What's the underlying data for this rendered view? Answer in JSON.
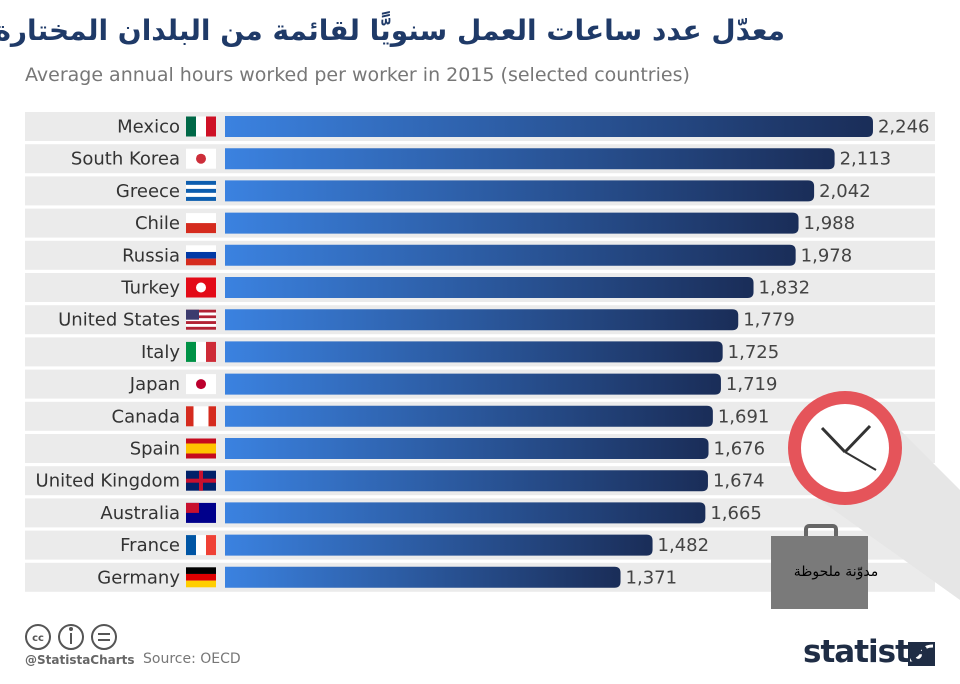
{
  "chart_data": {
    "type": "barh",
    "title": "معدّل عدد ساعات العمل سنويًّا لقائمة من البلدان المختارة",
    "subtitle": "Average annual hours worked per worker in 2015 (selected countries)",
    "categories": [
      "Mexico",
      "South Korea",
      "Greece",
      "Chile",
      "Russia",
      "Turkey",
      "United States",
      "Italy",
      "Japan",
      "Canada",
      "Spain",
      "United Kingdom",
      "Australia",
      "France",
      "Germany"
    ],
    "values": [
      2246,
      2113,
      2042,
      1988,
      1978,
      1832,
      1779,
      1725,
      1719,
      1691,
      1676,
      1674,
      1665,
      1482,
      1371
    ],
    "value_labels": [
      "2,246",
      "2,113",
      "2,042",
      "1,988",
      "1,978",
      "1,832",
      "1,779",
      "1,725",
      "1,719",
      "1,691",
      "1,676",
      "1,674",
      "1,665",
      "1,482",
      "1,371"
    ],
    "color_start": "#3b82e0",
    "color_end": "#1a2d58",
    "note": "مدوّنة ملحوظة",
    "handle": "@StatistaCharts",
    "source": "Source: OECD",
    "brand": "statista"
  }
}
